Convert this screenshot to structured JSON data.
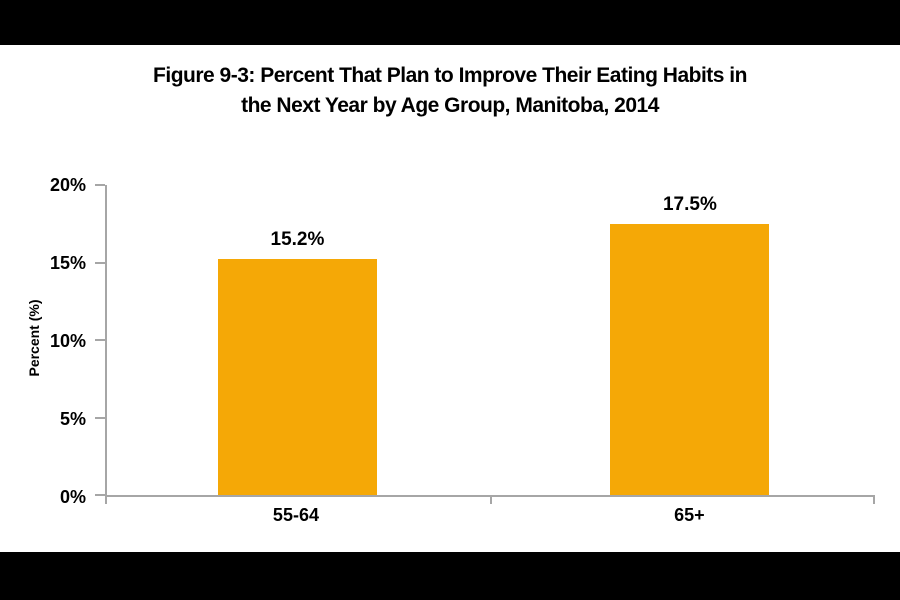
{
  "page": {
    "background_color": "#000000",
    "canvas_color": "#FFFFFF"
  },
  "figure": {
    "title_line1": "Figure 9-3: Percent That Plan to Improve Their Eating Habits in",
    "title_line2": "the Next Year by Age Group, Manitoba, 2014"
  },
  "chart_data": {
    "type": "bar",
    "title": "Figure 9-3: Percent That Plan to Improve Their Eating Habits in the Next Year by Age Group, Manitoba, 2014",
    "categories": [
      "55-64",
      "65+"
    ],
    "values": [
      15.2,
      17.5
    ],
    "value_labels": [
      "15.2%",
      "17.5%"
    ],
    "xlabel": "",
    "ylabel": "Percent (%)",
    "ylim": [
      0,
      20
    ],
    "ytick_labels": [
      "0%",
      "5%",
      "10%",
      "15%",
      "20%"
    ],
    "ytick_values": [
      0,
      5,
      10,
      15,
      20
    ],
    "bar_color": "#F5A806",
    "axis_color": "#A6A6A6",
    "text_color": "#000000",
    "grid": false,
    "legend": "none"
  }
}
